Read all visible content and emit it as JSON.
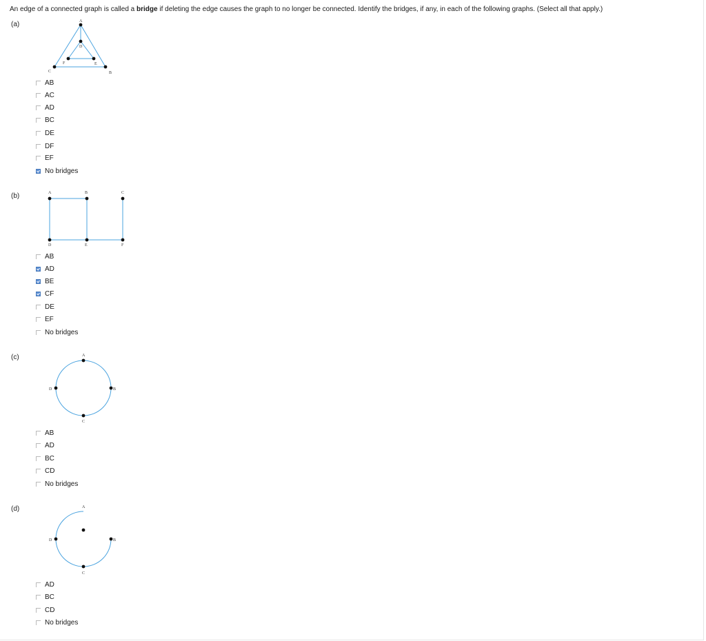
{
  "prompt": {
    "pre": "An edge of a connected graph is called a ",
    "bold": "bridge",
    "post": " if deleting the edge causes the graph to no longer be connected. Identify the bridges, if any, in each of the following graphs. (Select all that apply.)"
  },
  "parts": [
    {
      "label": "(a)",
      "vertices": [
        "A",
        "B",
        "C",
        "D",
        "E",
        "F"
      ],
      "options": [
        {
          "text": "AB",
          "checked": false
        },
        {
          "text": "AC",
          "checked": false
        },
        {
          "text": "AD",
          "checked": false
        },
        {
          "text": "BC",
          "checked": false
        },
        {
          "text": "DE",
          "checked": false
        },
        {
          "text": "DF",
          "checked": false
        },
        {
          "text": "EF",
          "checked": false
        },
        {
          "text": "No bridges",
          "checked": true
        }
      ]
    },
    {
      "label": "(b)",
      "vertices": [
        "A",
        "B",
        "C",
        "D",
        "E",
        "F"
      ],
      "options": [
        {
          "text": "AB",
          "checked": false
        },
        {
          "text": "AD",
          "checked": true
        },
        {
          "text": "BE",
          "checked": true
        },
        {
          "text": "CF",
          "checked": true
        },
        {
          "text": "DE",
          "checked": false
        },
        {
          "text": "EF",
          "checked": false
        },
        {
          "text": "No bridges",
          "checked": false
        }
      ]
    },
    {
      "label": "(c)",
      "vertices": [
        "A",
        "B",
        "C",
        "D"
      ],
      "options": [
        {
          "text": "AB",
          "checked": false
        },
        {
          "text": "AD",
          "checked": false
        },
        {
          "text": "BC",
          "checked": false
        },
        {
          "text": "CD",
          "checked": false
        },
        {
          "text": "No bridges",
          "checked": false
        }
      ]
    },
    {
      "label": "(d)",
      "vertices": [
        "A",
        "B",
        "C",
        "D"
      ],
      "options": [
        {
          "text": "AD",
          "checked": false
        },
        {
          "text": "BC",
          "checked": false
        },
        {
          "text": "CD",
          "checked": false
        },
        {
          "text": "No bridges",
          "checked": false
        }
      ]
    }
  ],
  "colors": {
    "edge": "#4aa3df",
    "vertex": "#111111",
    "checkbox_checked": "#5b8fd6"
  }
}
